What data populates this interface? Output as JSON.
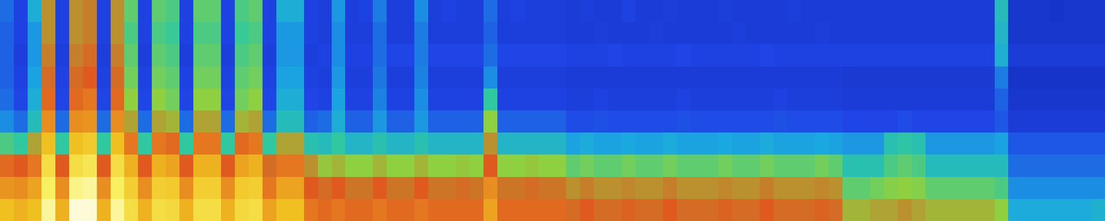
{
  "chart_data": {
    "type": "heatmap",
    "tick_labels": false,
    "zlim": [
      0,
      100
    ],
    "cells": [
      [
        22,
        14,
        35,
        62,
        14,
        62,
        64,
        14,
        62,
        50,
        14,
        50,
        48,
        14,
        50,
        50,
        14,
        48,
        50,
        14,
        35,
        35,
        14,
        13,
        30,
        13,
        14,
        25,
        13,
        13,
        28,
        13,
        14,
        13,
        13,
        22,
        13,
        14,
        13,
        13,
        13,
        12,
        13,
        12,
        12,
        14,
        12,
        12,
        13,
        12,
        12,
        12,
        13,
        12,
        12,
        12,
        12,
        13,
        12,
        12,
        12,
        12,
        12,
        12,
        12,
        12,
        12,
        12,
        12,
        12,
        12,
        12,
        40,
        10,
        10,
        10,
        9,
        10,
        10,
        10
      ],
      [
        20,
        14,
        30,
        62,
        14,
        62,
        64,
        14,
        62,
        48,
        14,
        48,
        46,
        14,
        48,
        48,
        14,
        46,
        48,
        14,
        30,
        30,
        14,
        13,
        28,
        13,
        13,
        22,
        13,
        13,
        25,
        13,
        13,
        13,
        13,
        20,
        13,
        13,
        13,
        13,
        13,
        12,
        12,
        13,
        12,
        12,
        12,
        13,
        12,
        12,
        12,
        12,
        12,
        13,
        12,
        12,
        12,
        12,
        12,
        13,
        12,
        12,
        12,
        12,
        12,
        12,
        12,
        12,
        12,
        12,
        12,
        12,
        38,
        10,
        10,
        10,
        10,
        10,
        10,
        10
      ],
      [
        20,
        13,
        30,
        64,
        13,
        64,
        66,
        13,
        64,
        50,
        13,
        50,
        48,
        13,
        50,
        50,
        13,
        48,
        50,
        13,
        30,
        30,
        13,
        14,
        28,
        14,
        14,
        22,
        15,
        15,
        25,
        15,
        15,
        15,
        15,
        22,
        15,
        15,
        15,
        15,
        15,
        14,
        14,
        14,
        15,
        14,
        14,
        14,
        14,
        15,
        14,
        14,
        14,
        14,
        14,
        15,
        14,
        14,
        14,
        14,
        14,
        14,
        14,
        14,
        14,
        14,
        14,
        14,
        14,
        14,
        14,
        14,
        36,
        12,
        12,
        12,
        12,
        12,
        12,
        12
      ],
      [
        20,
        14,
        32,
        66,
        14,
        66,
        68,
        14,
        66,
        52,
        14,
        52,
        50,
        14,
        52,
        52,
        14,
        50,
        52,
        14,
        32,
        32,
        14,
        13,
        30,
        13,
        13,
        24,
        13,
        13,
        26,
        13,
        13,
        13,
        13,
        28,
        13,
        13,
        13,
        13,
        13,
        12,
        12,
        12,
        12,
        12,
        12,
        12,
        12,
        12,
        12,
        12,
        12,
        12,
        12,
        12,
        12,
        12,
        12,
        12,
        12,
        11,
        11,
        11,
        11,
        11,
        11,
        11,
        11,
        11,
        11,
        11,
        25,
        9,
        9,
        9,
        9,
        9,
        9,
        9
      ],
      [
        22,
        15,
        35,
        70,
        15,
        70,
        72,
        15,
        70,
        55,
        15,
        55,
        52,
        15,
        55,
        55,
        15,
        52,
        55,
        15,
        35,
        35,
        15,
        14,
        32,
        14,
        14,
        26,
        14,
        14,
        28,
        14,
        14,
        14,
        14,
        45,
        14,
        14,
        14,
        14,
        14,
        13,
        13,
        14,
        13,
        13,
        13,
        13,
        13,
        14,
        13,
        13,
        13,
        13,
        13,
        13,
        14,
        13,
        13,
        13,
        13,
        12,
        12,
        12,
        12,
        12,
        12,
        12,
        12,
        12,
        12,
        12,
        20,
        10,
        10,
        10,
        10,
        10,
        10,
        10
      ],
      [
        28,
        22,
        40,
        75,
        22,
        75,
        76,
        22,
        75,
        60,
        22,
        60,
        58,
        22,
        60,
        60,
        22,
        58,
        60,
        22,
        40,
        40,
        20,
        22,
        35,
        20,
        20,
        30,
        20,
        20,
        30,
        20,
        20,
        20,
        20,
        55,
        20,
        20,
        20,
        20,
        20,
        16,
        16,
        17,
        16,
        16,
        16,
        16,
        16,
        17,
        16,
        16,
        16,
        16,
        16,
        16,
        17,
        16,
        16,
        16,
        16,
        15,
        15,
        15,
        15,
        16,
        15,
        15,
        15,
        15,
        15,
        15,
        18,
        12,
        12,
        12,
        12,
        12,
        12,
        12
      ],
      [
        48,
        45,
        60,
        82,
        45,
        82,
        84,
        45,
        82,
        72,
        45,
        72,
        70,
        45,
        72,
        72,
        45,
        70,
        72,
        45,
        60,
        60,
        42,
        40,
        45,
        38,
        38,
        42,
        38,
        38,
        42,
        38,
        38,
        38,
        38,
        62,
        38,
        38,
        38,
        38,
        38,
        32,
        34,
        32,
        32,
        33,
        32,
        32,
        34,
        32,
        32,
        32,
        33,
        32,
        32,
        34,
        32,
        32,
        32,
        33,
        32,
        30,
        30,
        30,
        42,
        44,
        42,
        30,
        30,
        30,
        30,
        30,
        32,
        18,
        18,
        18,
        18,
        18,
        18,
        18
      ],
      [
        70,
        68,
        72,
        88,
        68,
        88,
        90,
        68,
        88,
        80,
        68,
        80,
        78,
        68,
        80,
        80,
        68,
        78,
        80,
        66,
        72,
        72,
        62,
        56,
        58,
        55,
        55,
        58,
        55,
        55,
        58,
        55,
        55,
        56,
        55,
        68,
        55,
        55,
        56,
        55,
        55,
        50,
        52,
        50,
        50,
        52,
        50,
        50,
        52,
        50,
        50,
        50,
        52,
        50,
        50,
        52,
        50,
        50,
        50,
        52,
        50,
        42,
        42,
        42,
        48,
        50,
        48,
        40,
        40,
        40,
        40,
        40,
        40,
        22,
        22,
        22,
        22,
        22,
        22,
        22
      ],
      [
        76,
        75,
        78,
        92,
        75,
        94,
        95,
        75,
        92,
        85,
        75,
        85,
        84,
        75,
        85,
        85,
        75,
        84,
        85,
        72,
        78,
        78,
        68,
        66,
        68,
        65,
        65,
        68,
        65,
        65,
        68,
        65,
        65,
        66,
        65,
        75,
        65,
        65,
        66,
        65,
        65,
        62,
        64,
        62,
        62,
        63,
        62,
        62,
        64,
        62,
        62,
        62,
        63,
        62,
        62,
        64,
        62,
        62,
        62,
        63,
        62,
        50,
        50,
        52,
        54,
        55,
        54,
        50,
        50,
        50,
        50,
        50,
        48,
        28,
        28,
        28,
        28,
        28,
        28,
        28
      ],
      [
        82,
        80,
        82,
        95,
        80,
        98,
        98,
        80,
        95,
        88,
        80,
        88,
        87,
        80,
        88,
        88,
        80,
        87,
        88,
        78,
        82,
        82,
        72,
        70,
        72,
        70,
        70,
        72,
        70,
        70,
        72,
        70,
        70,
        70,
        70,
        78,
        70,
        70,
        70,
        70,
        70,
        66,
        68,
        66,
        66,
        67,
        66,
        66,
        68,
        66,
        66,
        66,
        67,
        66,
        66,
        68,
        66,
        66,
        66,
        67,
        66,
        58,
        58,
        60,
        60,
        62,
        60,
        58,
        58,
        58,
        58,
        58,
        55,
        34,
        34,
        34,
        34,
        34,
        34,
        36
      ]
    ]
  }
}
